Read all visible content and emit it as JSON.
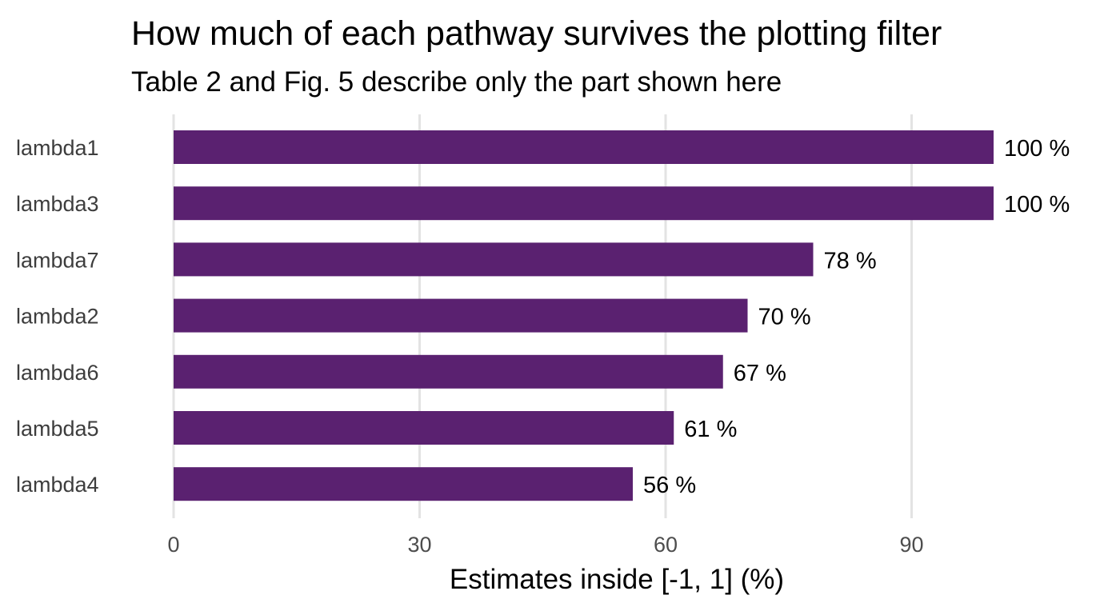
{
  "chart_data": {
    "type": "bar",
    "orientation": "horizontal",
    "title": "How much of each pathway survives the plotting filter",
    "subtitle": "Table 2 and Fig. 5 describe only the part shown here",
    "xlabel": "Estimates inside [-1, 1] (%)",
    "ylabel": "",
    "categories": [
      "lambda1",
      "lambda3",
      "lambda7",
      "lambda2",
      "lambda6",
      "lambda5",
      "lambda4"
    ],
    "values": [
      100,
      100,
      78,
      70,
      67,
      61,
      56
    ],
    "value_labels": [
      "100 %",
      "100 %",
      "78 %",
      "70 %",
      "67 %",
      "61 %",
      "56 %"
    ],
    "xlim": [
      0,
      100
    ],
    "xticks": [
      0,
      30,
      60,
      90
    ],
    "xtick_labels": [
      "0",
      "30",
      "60",
      "90"
    ],
    "grid": "vertical major gridlines",
    "legend": "none",
    "bar_color": "#5a2170"
  }
}
